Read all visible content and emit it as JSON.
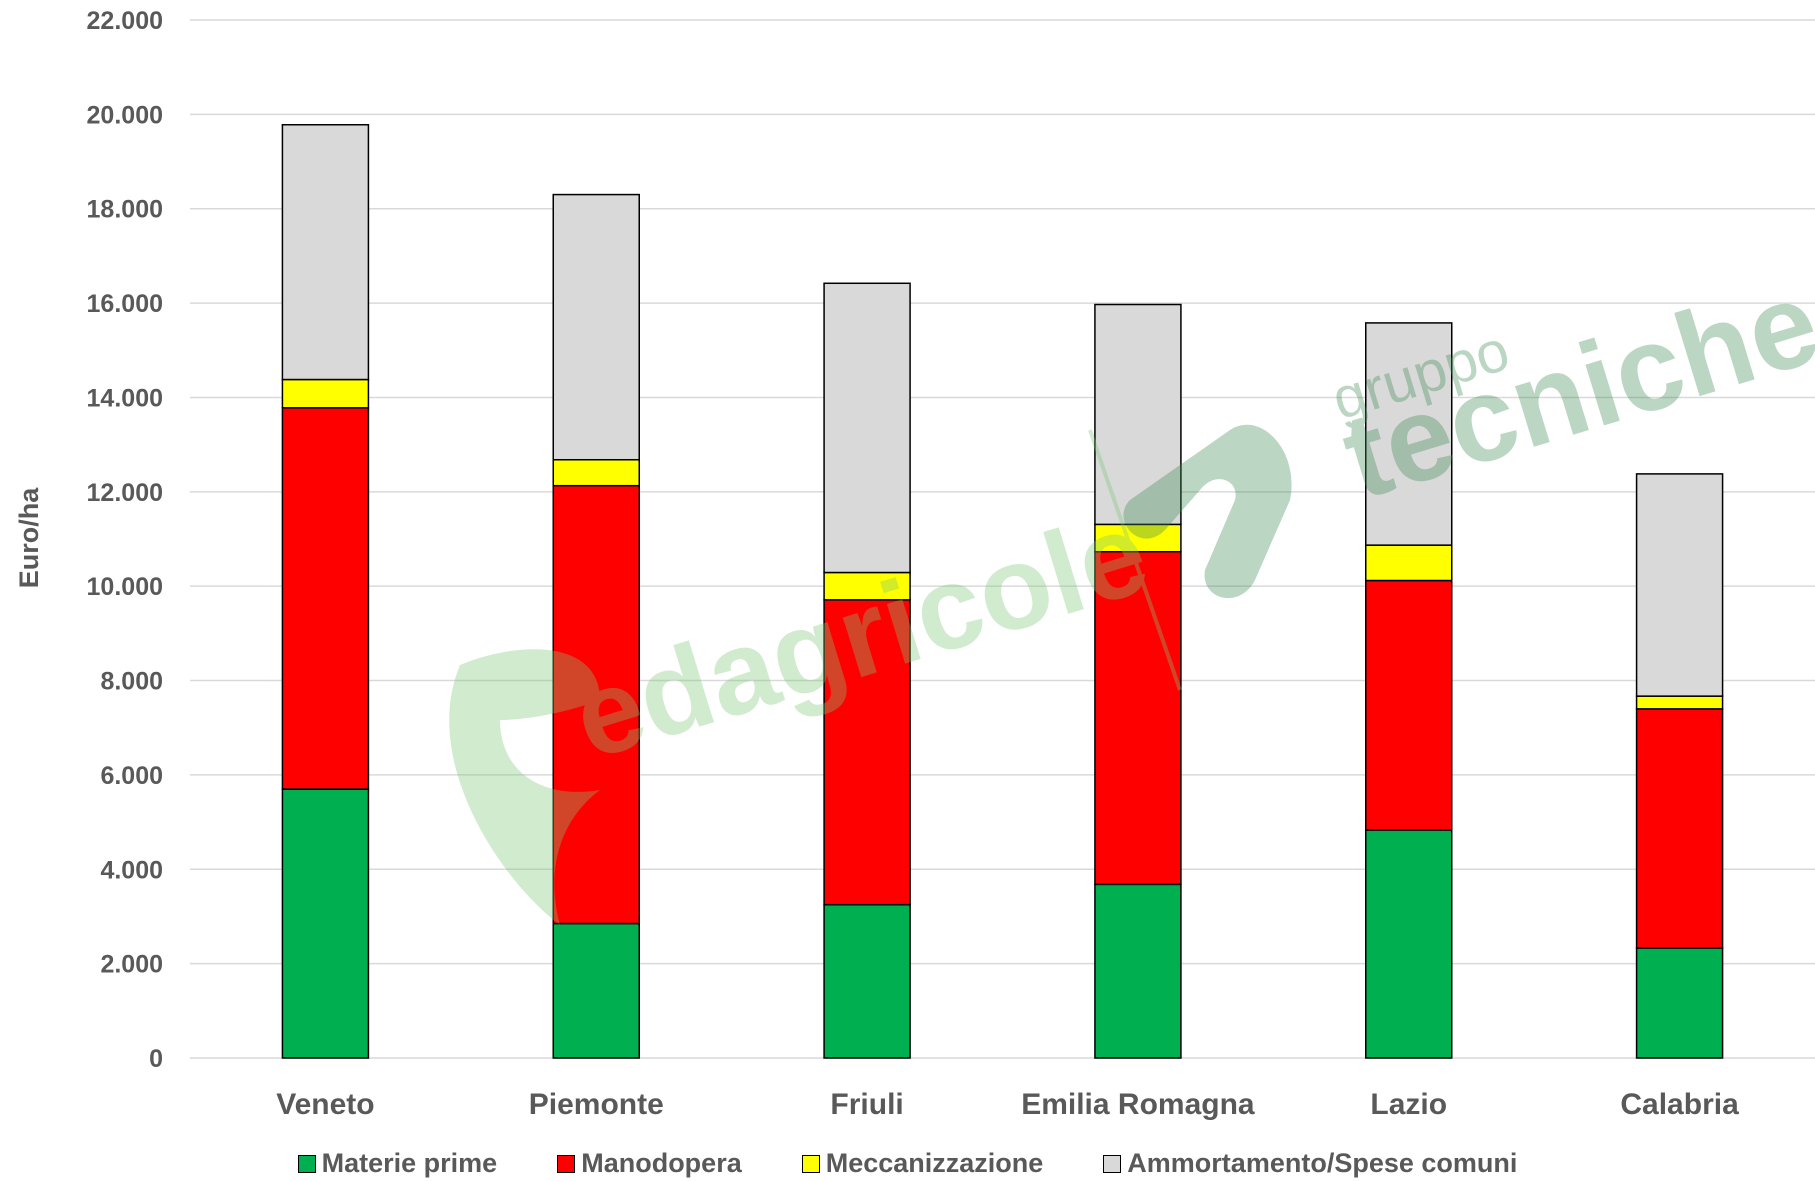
{
  "chart_data": {
    "type": "bar",
    "stacked": true,
    "categories": [
      "Veneto",
      "Piemonte",
      "Friuli",
      "Emilia Romagna",
      "Lazio",
      "Calabria"
    ],
    "series": [
      {
        "name": "Materie prime",
        "color": "#00b050",
        "values": [
          5700,
          2850,
          3250,
          3680,
          4830,
          2330
        ]
      },
      {
        "name": "Manodopera",
        "color": "#ff0000",
        "values": [
          8080,
          9280,
          6460,
          7050,
          5290,
          5070
        ]
      },
      {
        "name": "Meccanizzazione",
        "color": "#ffff00",
        "values": [
          600,
          550,
          580,
          580,
          750,
          270
        ]
      },
      {
        "name": "Ammortamento/Spese comuni",
        "color": "#d9d9d9",
        "values": [
          5400,
          5620,
          6130,
          4660,
          4710,
          4710
        ]
      }
    ],
    "yticks": [
      "0",
      "2.000",
      "4.000",
      "6.000",
      "8.000",
      "10.000",
      "12.000",
      "14.000",
      "16.000",
      "18.000",
      "20.000",
      "22.000"
    ],
    "ylim": [
      0,
      22000
    ],
    "xlabel": "",
    "ylabel": "Euro/ha",
    "grid": true,
    "legend_position": "bottom"
  },
  "watermark": {
    "brand1": "edagricole",
    "brand2_small": "gruppo",
    "brand2": "tecniche nu"
  }
}
